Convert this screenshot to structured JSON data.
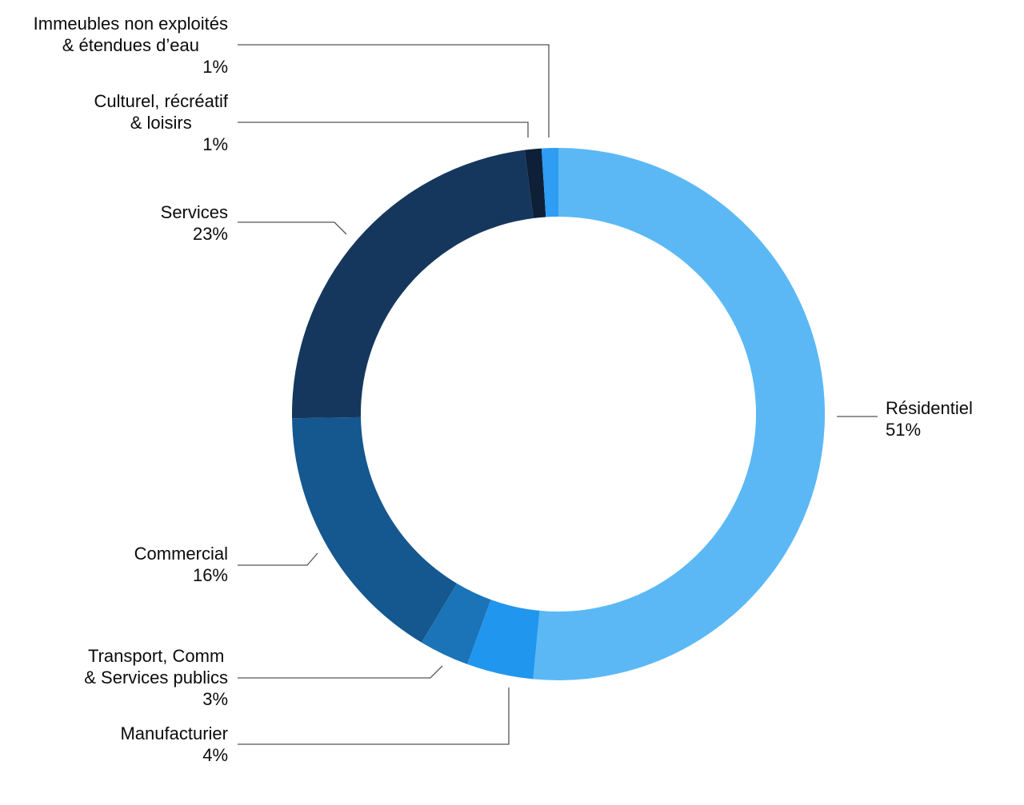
{
  "chart_data": {
    "type": "pie",
    "subtype": "donut",
    "title": "",
    "unit": "%",
    "legend_position": "callout-labels",
    "grid": false,
    "start_angle_deg": 0,
    "direction": "clockwise",
    "slices": [
      {
        "key": "residentiel",
        "label": "Résidentiel",
        "value": 51,
        "pct_label": "51%",
        "color": "#5BB8F5",
        "side": "right"
      },
      {
        "key": "manufacturier",
        "label": "Manufacturier",
        "value": 4,
        "pct_label": "4%",
        "color": "#2196EF",
        "side": "left"
      },
      {
        "key": "transport",
        "label": "Transport, Comm\n& Services publics",
        "value": 3,
        "pct_label": "3%",
        "color": "#1B74B7",
        "side": "left"
      },
      {
        "key": "commercial",
        "label": "Commercial",
        "value": 16,
        "pct_label": "16%",
        "color": "#15578F",
        "side": "left"
      },
      {
        "key": "services",
        "label": "Services",
        "value": 23,
        "pct_label": "23%",
        "color": "#16375D",
        "side": "left"
      },
      {
        "key": "culturel",
        "label": "Culturel, récréatif\n& loisirs",
        "value": 1,
        "pct_label": "1%",
        "color": "#0D2038",
        "side": "left"
      },
      {
        "key": "immeubles",
        "label": "Immeubles non exploités\n& étendues d’eau",
        "value": 1,
        "pct_label": "1%",
        "color": "#2E9DF3",
        "side": "left"
      }
    ],
    "leader_line_color": "#555555"
  }
}
